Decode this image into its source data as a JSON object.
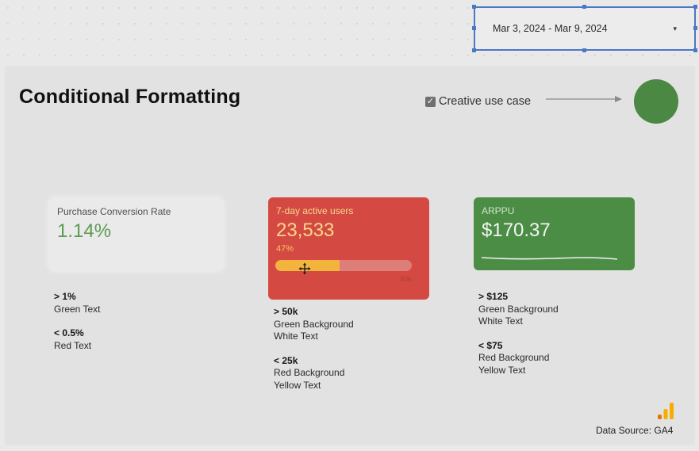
{
  "date_range": {
    "value": "Mar 3, 2024 - Mar 9, 2024",
    "caret": "▾"
  },
  "report": {
    "title": "Conditional Formatting",
    "checkbox": {
      "label": "Creative use case",
      "checked": true,
      "mark": "✓"
    },
    "status_color": "#4b8843"
  },
  "scorecards": [
    {
      "label": "Purchase Conversion Rate",
      "value": "1.14%",
      "value_color": "#5e9a52"
    },
    {
      "label": "7-day active users",
      "value": "23,533",
      "delta": "47%",
      "progress_fraction": 0.47,
      "progress_max": "50k",
      "background": "#d44a43",
      "text_color": "#f6d78b"
    },
    {
      "label": "ARPPU",
      "value": "$170.37",
      "background": "#4b8d45",
      "text_color": "#f4f4f4"
    }
  ],
  "rules": {
    "conversion": [
      {
        "condition": "> 1%",
        "format": [
          "Green Text"
        ]
      },
      {
        "condition": "< 0.5%",
        "format": [
          "Red Text"
        ]
      }
    ],
    "active_users": [
      {
        "condition": "> 50k",
        "format": [
          "Green Background",
          "White Text"
        ]
      },
      {
        "condition": "< 25k",
        "format": [
          "Red Background",
          "Yellow Text"
        ]
      }
    ],
    "arppu": [
      {
        "condition": "> $125",
        "format": [
          "Green Background",
          "White Text"
        ]
      },
      {
        "condition": "< $75",
        "format": [
          "Red Background",
          "Yellow Text"
        ]
      }
    ]
  },
  "footer": {
    "data_source": "Data Source: GA4",
    "logo_icon": "ga4-logo-icon"
  },
  "icons": {
    "move_cursor": "move-cursor-icon",
    "arrow": "arrow-right-icon"
  }
}
